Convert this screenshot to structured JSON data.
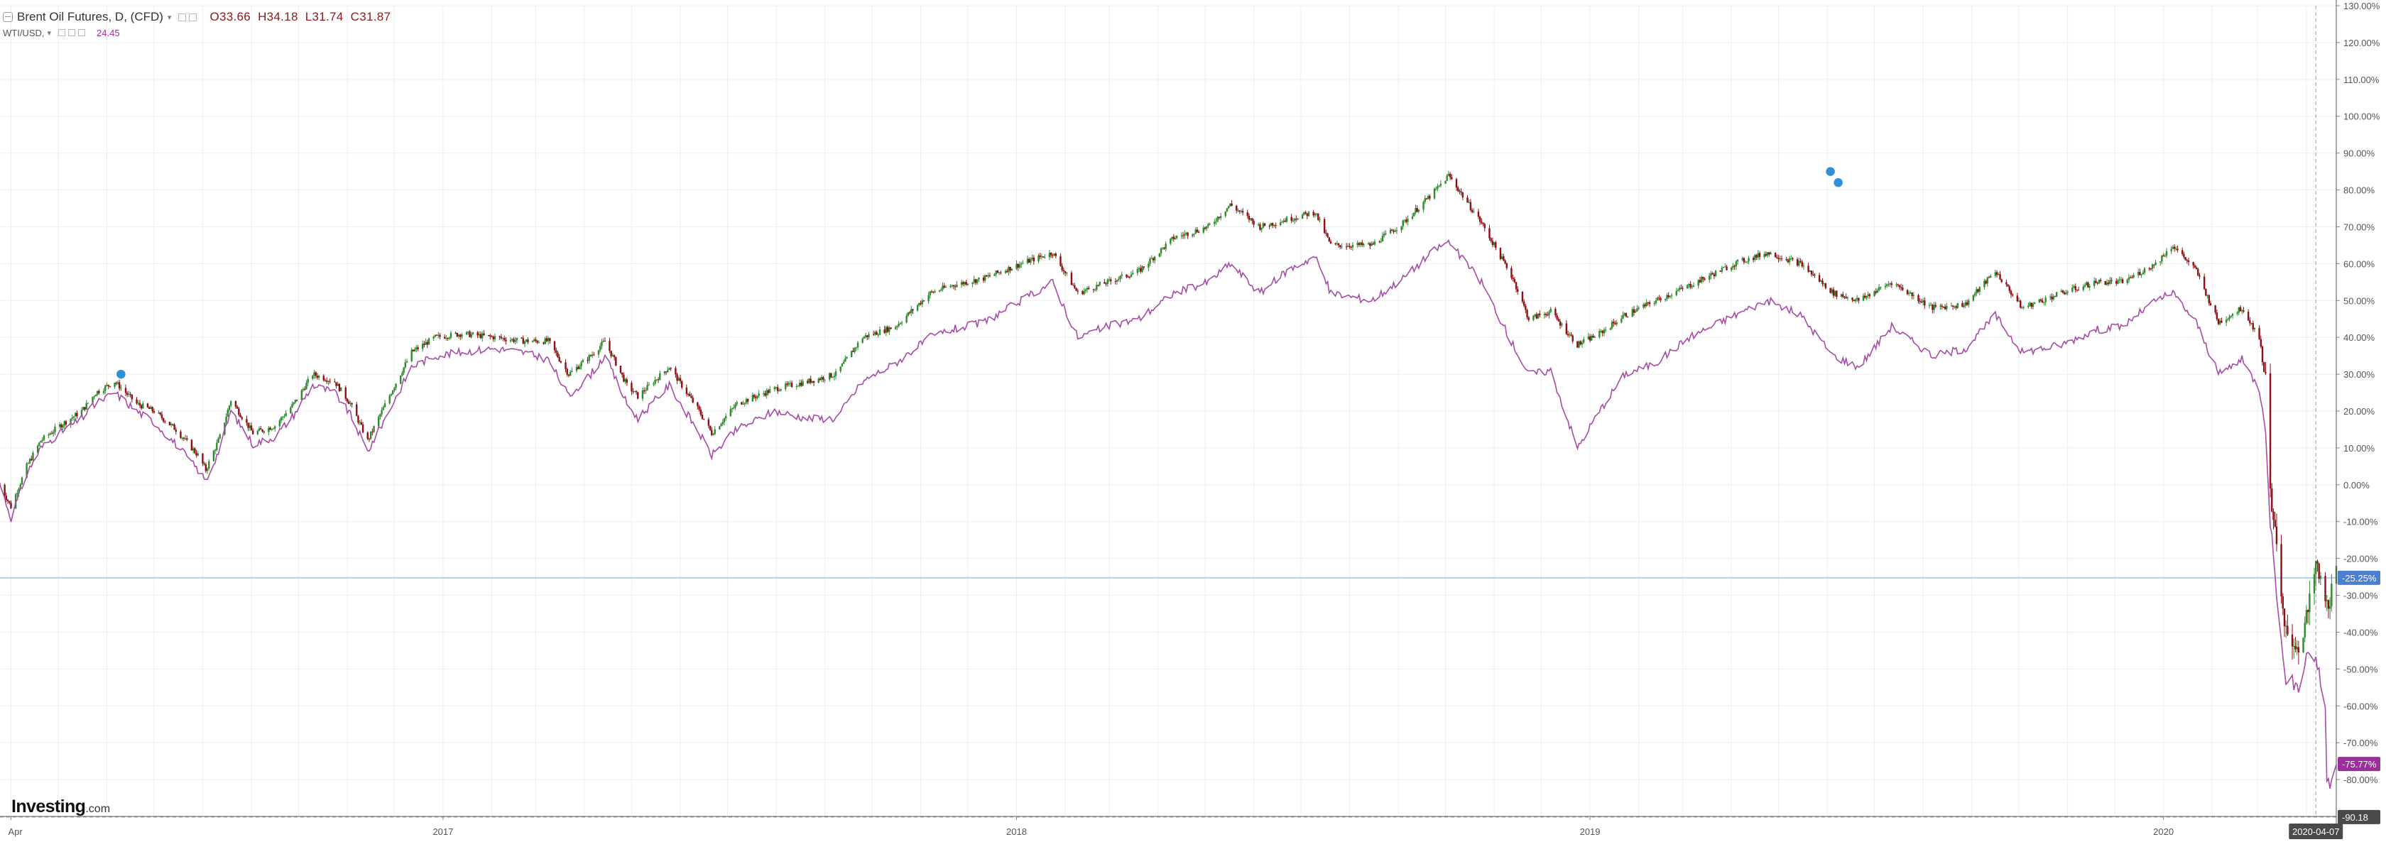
{
  "legend": {
    "main_title": "Brent Oil Futures, D, (CFD)",
    "ohlc": {
      "o_label": "O",
      "o": "33.66",
      "h_label": "H",
      "h": "34.18",
      "l_label": "L",
      "l": "31.74",
      "c_label": "C",
      "c": "31.87"
    },
    "compare_title": "WTI/USD,",
    "compare_value": "24.45"
  },
  "logo": {
    "brand": "Investing",
    "suffix": ".com"
  },
  "colors": {
    "up": "#2e8b2e",
    "down": "#8b0f14",
    "compare_line": "#a64ca6",
    "grid": "#eeeeee",
    "zero_line": "#b3d1ee",
    "current_tag": "#4d7fd1",
    "compare_tag": "#9b2f9b",
    "date_tag": "#4a4a4a"
  },
  "chart_data": {
    "type": "line",
    "title": "Brent Oil Futures, D, (CFD)",
    "y_unit": "percent change",
    "ylim": [
      -90,
      130
    ],
    "y_ticks": [
      "130.00%",
      "120.00%",
      "110.00%",
      "100.00%",
      "90.00%",
      "80.00%",
      "70.00%",
      "60.00%",
      "50.00%",
      "40.00%",
      "30.00%",
      "20.00%",
      "10.00%",
      "0.00%",
      "-10.00%",
      "-20.00%",
      "-30.00%",
      "-40.00%",
      "-50.00%",
      "-60.00%",
      "-70.00%",
      "-80.00%"
    ],
    "y_tick_values": [
      130,
      120,
      110,
      100,
      90,
      80,
      70,
      60,
      50,
      40,
      30,
      20,
      10,
      0,
      -10,
      -20,
      -30,
      -40,
      -50,
      -60,
      -70,
      -80
    ],
    "x_ticks": [
      "Apr",
      "2017",
      "2018",
      "2019",
      "2020"
    ],
    "x_tick_dates": [
      "2016-04-01",
      "2017-01-01",
      "2018-01-01",
      "2019-01-01",
      "2020-01-01"
    ],
    "x_range": [
      "2016-03-25",
      "2020-04-20"
    ],
    "current_date_label": "2020-04-07",
    "current_date": "2020-04-07",
    "grid": true,
    "legend_position": "top-left",
    "current_values": {
      "brent_label": "-25.25%",
      "brent": -25.25,
      "wti_label": "-75.77%",
      "wti": -75.77,
      "bottom_label": "-90.18",
      "bottom": -90.18
    },
    "series": [
      {
        "name": "Brent Oil Futures, D, (CFD)",
        "style": "candlestick",
        "points": [
          [
            "2016-03-25",
            0
          ],
          [
            "2016-04-01",
            -6
          ],
          [
            "2016-04-11",
            5
          ],
          [
            "2016-04-20",
            12
          ],
          [
            "2016-05-02",
            16
          ],
          [
            "2016-05-16",
            20
          ],
          [
            "2016-05-25",
            25
          ],
          [
            "2016-06-06",
            28
          ],
          [
            "2016-06-20",
            22
          ],
          [
            "2016-07-01",
            20
          ],
          [
            "2016-07-15",
            15
          ],
          [
            "2016-07-29",
            8
          ],
          [
            "2016-08-03",
            4
          ],
          [
            "2016-08-12",
            13
          ],
          [
            "2016-08-19",
            23
          ],
          [
            "2016-09-02",
            14
          ],
          [
            "2016-09-16",
            16
          ],
          [
            "2016-09-28",
            22
          ],
          [
            "2016-10-10",
            30
          ],
          [
            "2016-10-24",
            28
          ],
          [
            "2016-11-03",
            22
          ],
          [
            "2016-11-14",
            12
          ],
          [
            "2016-11-30",
            26
          ],
          [
            "2016-12-12",
            36
          ],
          [
            "2016-12-27",
            40
          ],
          [
            "2017-01-13",
            41
          ],
          [
            "2017-02-03",
            40
          ],
          [
            "2017-02-20",
            39
          ],
          [
            "2017-03-09",
            39
          ],
          [
            "2017-03-22",
            30
          ],
          [
            "2017-04-05",
            35
          ],
          [
            "2017-04-14",
            39
          ],
          [
            "2017-04-28",
            27
          ],
          [
            "2017-05-05",
            24
          ],
          [
            "2017-05-25",
            32
          ],
          [
            "2017-06-13",
            20
          ],
          [
            "2017-06-21",
            14
          ],
          [
            "2017-07-07",
            22
          ],
          [
            "2017-07-31",
            26
          ],
          [
            "2017-08-21",
            28
          ],
          [
            "2017-09-08",
            30
          ],
          [
            "2017-09-25",
            40
          ],
          [
            "2017-10-16",
            43
          ],
          [
            "2017-11-07",
            52
          ],
          [
            "2017-11-20",
            54
          ],
          [
            "2017-12-11",
            56
          ],
          [
            "2018-01-04",
            60
          ],
          [
            "2018-01-24",
            63
          ],
          [
            "2018-02-09",
            52
          ],
          [
            "2018-02-28",
            55
          ],
          [
            "2018-03-20",
            58
          ],
          [
            "2018-04-11",
            67
          ],
          [
            "2018-05-03",
            70
          ],
          [
            "2018-05-17",
            76
          ],
          [
            "2018-06-05",
            70
          ],
          [
            "2018-06-22",
            72
          ],
          [
            "2018-07-10",
            74
          ],
          [
            "2018-07-20",
            65
          ],
          [
            "2018-08-15",
            65
          ],
          [
            "2018-09-04",
            71
          ],
          [
            "2018-09-25",
            80
          ],
          [
            "2018-10-03",
            84
          ],
          [
            "2018-10-24",
            71
          ],
          [
            "2018-11-13",
            56
          ],
          [
            "2018-11-23",
            45
          ],
          [
            "2018-12-07",
            47
          ],
          [
            "2018-12-24",
            38
          ],
          [
            "2019-01-07",
            41
          ],
          [
            "2019-01-23",
            46
          ],
          [
            "2019-02-12",
            50
          ],
          [
            "2019-03-05",
            54
          ],
          [
            "2019-04-03",
            60
          ],
          [
            "2019-04-24",
            63
          ],
          [
            "2019-05-15",
            60
          ],
          [
            "2019-06-05",
            52
          ],
          [
            "2019-06-21",
            50
          ],
          [
            "2019-07-12",
            55
          ],
          [
            "2019-08-07",
            48
          ],
          [
            "2019-08-28",
            49
          ],
          [
            "2019-09-16",
            58
          ],
          [
            "2019-10-03",
            48
          ],
          [
            "2019-10-28",
            52
          ],
          [
            "2019-11-19",
            55
          ],
          [
            "2019-12-06",
            55
          ],
          [
            "2019-12-27",
            60
          ],
          [
            "2020-01-07",
            65
          ],
          [
            "2020-01-22",
            58
          ],
          [
            "2020-02-05",
            44
          ],
          [
            "2020-02-20",
            48
          ],
          [
            "2020-03-02",
            40
          ],
          [
            "2020-03-06",
            28
          ],
          [
            "2020-03-09",
            0
          ],
          [
            "2020-03-18",
            -40
          ],
          [
            "2020-03-27",
            -44
          ],
          [
            "2020-04-02",
            -35
          ],
          [
            "2020-04-07",
            -22
          ],
          [
            "2020-04-14",
            -33
          ],
          [
            "2020-04-20",
            -25
          ]
        ],
        "annotations": [
          {
            "date": "2016-06-10",
            "value": 30
          },
          {
            "date": "2019-06-03",
            "value": 85
          },
          {
            "date": "2019-06-08",
            "value": 82
          }
        ]
      },
      {
        "name": "WTI/USD,",
        "style": "line",
        "points": [
          [
            "2016-03-25",
            0
          ],
          [
            "2016-04-01",
            -9
          ],
          [
            "2016-04-11",
            3
          ],
          [
            "2016-04-20",
            10
          ],
          [
            "2016-05-02",
            14
          ],
          [
            "2016-05-16",
            18
          ],
          [
            "2016-05-25",
            22
          ],
          [
            "2016-06-06",
            25
          ],
          [
            "2016-06-20",
            20
          ],
          [
            "2016-07-01",
            17
          ],
          [
            "2016-07-15",
            11
          ],
          [
            "2016-07-29",
            4
          ],
          [
            "2016-08-03",
            1
          ],
          [
            "2016-08-12",
            10
          ],
          [
            "2016-08-19",
            20
          ],
          [
            "2016-09-02",
            11
          ],
          [
            "2016-09-16",
            13
          ],
          [
            "2016-09-28",
            19
          ],
          [
            "2016-10-10",
            27
          ],
          [
            "2016-10-24",
            25
          ],
          [
            "2016-11-03",
            19
          ],
          [
            "2016-11-14",
            9
          ],
          [
            "2016-11-30",
            22
          ],
          [
            "2016-12-12",
            32
          ],
          [
            "2016-12-27",
            35
          ],
          [
            "2017-01-13",
            36
          ],
          [
            "2017-02-03",
            37
          ],
          [
            "2017-02-20",
            36
          ],
          [
            "2017-03-09",
            34
          ],
          [
            "2017-03-22",
            24
          ],
          [
            "2017-04-05",
            30
          ],
          [
            "2017-04-14",
            35
          ],
          [
            "2017-04-28",
            22
          ],
          [
            "2017-05-05",
            18
          ],
          [
            "2017-05-25",
            27
          ],
          [
            "2017-06-13",
            14
          ],
          [
            "2017-06-21",
            8
          ],
          [
            "2017-07-07",
            15
          ],
          [
            "2017-07-31",
            20
          ],
          [
            "2017-08-21",
            18
          ],
          [
            "2017-09-08",
            18
          ],
          [
            "2017-09-25",
            28
          ],
          [
            "2017-10-16",
            33
          ],
          [
            "2017-11-07",
            40
          ],
          [
            "2017-11-20",
            42
          ],
          [
            "2017-12-11",
            44
          ],
          [
            "2018-01-04",
            50
          ],
          [
            "2018-01-24",
            55
          ],
          [
            "2018-02-09",
            40
          ],
          [
            "2018-02-28",
            43
          ],
          [
            "2018-03-20",
            45
          ],
          [
            "2018-04-11",
            52
          ],
          [
            "2018-05-03",
            55
          ],
          [
            "2018-05-17",
            60
          ],
          [
            "2018-06-05",
            52
          ],
          [
            "2018-06-22",
            58
          ],
          [
            "2018-07-10",
            62
          ],
          [
            "2018-07-20",
            52
          ],
          [
            "2018-08-15",
            50
          ],
          [
            "2018-09-04",
            56
          ],
          [
            "2018-09-25",
            64
          ],
          [
            "2018-10-03",
            66
          ],
          [
            "2018-10-24",
            55
          ],
          [
            "2018-11-13",
            38
          ],
          [
            "2018-11-23",
            30
          ],
          [
            "2018-12-07",
            31
          ],
          [
            "2018-12-24",
            10
          ],
          [
            "2019-01-07",
            20
          ],
          [
            "2019-01-23",
            30
          ],
          [
            "2019-02-12",
            33
          ],
          [
            "2019-03-05",
            40
          ],
          [
            "2019-04-03",
            46
          ],
          [
            "2019-04-24",
            50
          ],
          [
            "2019-05-15",
            46
          ],
          [
            "2019-06-05",
            35
          ],
          [
            "2019-06-21",
            32
          ],
          [
            "2019-07-12",
            43
          ],
          [
            "2019-08-07",
            35
          ],
          [
            "2019-08-28",
            37
          ],
          [
            "2019-09-16",
            46
          ],
          [
            "2019-10-03",
            36
          ],
          [
            "2019-10-28",
            38
          ],
          [
            "2019-11-19",
            42
          ],
          [
            "2019-12-06",
            43
          ],
          [
            "2019-12-27",
            50
          ],
          [
            "2020-01-07",
            52
          ],
          [
            "2020-01-22",
            44
          ],
          [
            "2020-02-05",
            30
          ],
          [
            "2020-02-20",
            34
          ],
          [
            "2020-03-02",
            26
          ],
          [
            "2020-03-06",
            16
          ],
          [
            "2020-03-09",
            -10
          ],
          [
            "2020-03-18",
            -52
          ],
          [
            "2020-03-27",
            -55
          ],
          [
            "2020-04-02",
            -45
          ],
          [
            "2020-04-07",
            -47
          ],
          [
            "2020-04-13",
            -60
          ],
          [
            "2020-04-14",
            -80
          ],
          [
            "2020-04-17",
            -82
          ],
          [
            "2020-04-20",
            -76
          ]
        ]
      }
    ]
  }
}
